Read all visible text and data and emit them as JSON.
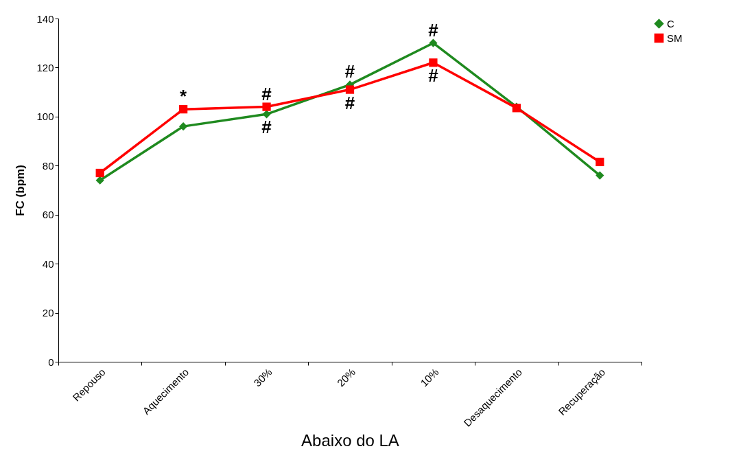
{
  "chart_data": {
    "type": "line",
    "xlabel": "Abaixo do LA",
    "ylabel": "FC (bpm)",
    "categories": [
      "Repouso",
      "Aquecimento",
      "30%",
      "20%",
      "10%",
      "Desaquecimento",
      "Recuperação"
    ],
    "series": [
      {
        "name": "C",
        "color": "#1f8a1f",
        "marker": "diamond",
        "values": [
          74,
          96,
          101,
          113,
          130,
          104,
          76
        ]
      },
      {
        "name": "SM",
        "color": "#ff0000",
        "marker": "square",
        "values": [
          77,
          103,
          104,
          111,
          122,
          103.5,
          81.5
        ]
      }
    ],
    "ylim": [
      0,
      140
    ],
    "yticks": [
      0,
      20,
      40,
      60,
      80,
      100,
      120,
      140
    ],
    "grid": false,
    "legend": "right",
    "annotations": [
      {
        "text": "*",
        "x": "Aquecimento",
        "y": 103
      },
      {
        "text": "#",
        "x": "30%",
        "y": 104
      },
      {
        "text": "#",
        "x": "30%",
        "y": 101
      },
      {
        "text": "#",
        "x": "20%",
        "y": 113
      },
      {
        "text": "#",
        "x": "20%",
        "y": 111
      },
      {
        "text": "#",
        "x": "10%",
        "y": 130
      },
      {
        "text": "#",
        "x": "10%",
        "y": 122
      }
    ]
  }
}
